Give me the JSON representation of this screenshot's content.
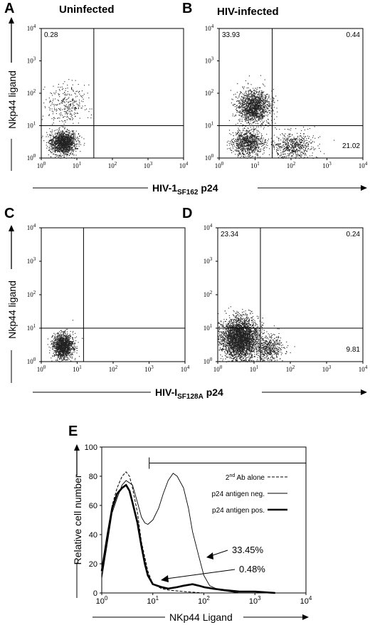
{
  "chart_data": [
    {
      "type": "scatter",
      "panel": "A",
      "title": "Uninfected",
      "ylabel": "Nkp44 ligand",
      "xlabel_main": "HIV-1",
      "xlabel_sub": "SF162",
      "xlabel_suffix": " p24",
      "x_ticks": [
        "10",
        "10",
        "10",
        "10",
        "10"
      ],
      "x_exps": [
        "0",
        "1",
        "2",
        "3",
        "4"
      ],
      "y_ticks": [
        "10",
        "10",
        "10",
        "10",
        "10"
      ],
      "y_exps": [
        "0",
        "1",
        "2",
        "3",
        "4"
      ],
      "xlim": [
        1,
        10000
      ],
      "ylim": [
        1,
        10000
      ],
      "xscale": "log",
      "yscale": "log",
      "gate_x": 30,
      "gate_y": 10,
      "quadrant_values": {
        "upper_left": "0.28",
        "upper_right": "",
        "lower_right": ""
      },
      "populations": [
        {
          "x_center": 4,
          "y_center": 3,
          "spread_x": 0.18,
          "spread_y": 0.18,
          "points": 1500
        },
        {
          "x_center": 5,
          "y_center": 45,
          "spread_x": 0.25,
          "spread_y": 0.3,
          "points": 300
        }
      ]
    },
    {
      "type": "scatter",
      "panel": "B",
      "title": "HIV-infected",
      "x_ticks": [
        "10",
        "10",
        "10",
        "10",
        "10"
      ],
      "x_exps": [
        "0",
        "1",
        "2",
        "3",
        "4"
      ],
      "y_ticks": [
        "10",
        "10",
        "10",
        "10",
        "10"
      ],
      "y_exps": [
        "0",
        "1",
        "2",
        "3",
        "4"
      ],
      "xlim": [
        1,
        10000
      ],
      "ylim": [
        1,
        10000
      ],
      "xscale": "log",
      "yscale": "log",
      "gate_x": 30,
      "gate_y": 10,
      "quadrant_values": {
        "upper_left": "33.93",
        "upper_right": "0.44",
        "lower_right": "21.02"
      },
      "populations": [
        {
          "x_center": 9,
          "y_center": 40,
          "spread_x": 0.22,
          "spread_y": 0.25,
          "points": 1500
        },
        {
          "x_center": 6,
          "y_center": 3,
          "spread_x": 0.22,
          "spread_y": 0.2,
          "points": 900
        },
        {
          "x_center": 110,
          "y_center": 2.5,
          "spread_x": 0.3,
          "spread_y": 0.2,
          "points": 600
        }
      ]
    },
    {
      "type": "scatter",
      "panel": "C",
      "ylabel": "Nkp44 ligand",
      "xlabel_main": "HIV-I",
      "xlabel_sub": "SF128A",
      "xlabel_suffix": " p24",
      "x_ticks": [
        "10",
        "10",
        "10",
        "10",
        "10"
      ],
      "x_exps": [
        "0",
        "1",
        "2",
        "3",
        "4"
      ],
      "y_ticks": [
        "10",
        "10",
        "10",
        "10",
        "10"
      ],
      "y_exps": [
        "0",
        "1",
        "2",
        "3",
        "4"
      ],
      "xlim": [
        1,
        10000
      ],
      "ylim": [
        1,
        10000
      ],
      "xscale": "log",
      "yscale": "log",
      "gate_x": 15,
      "gate_y": 10,
      "quadrant_values": {
        "upper_left": "",
        "upper_right": "",
        "lower_right": ""
      },
      "populations": [
        {
          "x_center": 4,
          "y_center": 3,
          "spread_x": 0.14,
          "spread_y": 0.18,
          "points": 1400
        }
      ]
    },
    {
      "type": "scatter",
      "panel": "D",
      "x_ticks": [
        "10",
        "10",
        "10",
        "10",
        "10"
      ],
      "x_exps": [
        "0",
        "1",
        "2",
        "3",
        "4"
      ],
      "y_ticks": [
        "10",
        "10",
        "10",
        "10",
        "10"
      ],
      "y_exps": [
        "0",
        "1",
        "2",
        "3",
        "4"
      ],
      "xlim": [
        1,
        10000
      ],
      "ylim": [
        1,
        10000
      ],
      "xscale": "log",
      "yscale": "log",
      "gate_x": 15,
      "gate_y": 10,
      "quadrant_values": {
        "upper_left": "23.34",
        "upper_right": "0.24",
        "lower_right": "9.81"
      },
      "populations": [
        {
          "x_center": 4,
          "y_center": 5,
          "spread_x": 0.25,
          "spread_y": 0.3,
          "points": 3500
        },
        {
          "x_center": 25,
          "y_center": 2.5,
          "spread_x": 0.2,
          "spread_y": 0.18,
          "points": 500
        }
      ]
    },
    {
      "type": "line",
      "panel": "E",
      "ylabel": "Relative cell number",
      "xlabel": "NKp44 Ligand",
      "xscale": "log",
      "xlim": [
        1,
        10000
      ],
      "ylim": [
        0,
        100
      ],
      "y_ticks": [
        "0",
        "20",
        "40",
        "60",
        "80",
        "100"
      ],
      "x_ticks": [
        "10",
        "10",
        "10",
        "10",
        "10"
      ],
      "x_exps": [
        "0",
        "1",
        "2",
        "3",
        "4"
      ],
      "gate_start": 8.5,
      "gate_y": 89,
      "legend": [
        {
          "label_main": "2",
          "label_sup": "nd",
          "label_rest": " Ab alone",
          "style": "dashed"
        },
        {
          "label_main": "p24 antigen neg.",
          "label_sup": "",
          "label_rest": "",
          "style": "thin"
        },
        {
          "label_main": "p24 antigen pos.",
          "label_sup": "",
          "label_rest": "",
          "style": "thick"
        }
      ],
      "annotations": [
        {
          "text": "33.45%"
        },
        {
          "text": "0.48%"
        }
      ],
      "series": [
        {
          "name": "2nd Ab alone",
          "style": "dashed",
          "x": [
            1,
            1.3,
            1.6,
            2,
            2.5,
            3,
            3.5,
            4,
            5,
            6,
            8,
            10,
            15,
            20,
            40,
            100,
            300
          ],
          "y": [
            12,
            40,
            60,
            72,
            80,
            83,
            80,
            72,
            55,
            35,
            15,
            6,
            3,
            2,
            1,
            0,
            0
          ]
        },
        {
          "name": "p24 antigen neg.",
          "style": "thin",
          "x": [
            1,
            1.3,
            1.6,
            2,
            2.5,
            3,
            4,
            5,
            6,
            7,
            8,
            10,
            13,
            16,
            20,
            25,
            30,
            40,
            50,
            60,
            80,
            100,
            130,
            200,
            500
          ],
          "y": [
            10,
            35,
            55,
            65,
            74,
            77,
            74,
            62,
            52,
            48,
            47,
            50,
            58,
            68,
            77,
            82,
            80,
            72,
            58,
            42,
            25,
            12,
            5,
            2,
            0
          ]
        },
        {
          "name": "p24 antigen pos.",
          "style": "thick",
          "x": [
            1,
            1.3,
            1.6,
            2,
            2.5,
            3,
            3.5,
            4,
            5,
            6,
            7,
            8,
            10,
            15,
            20,
            30,
            40,
            60,
            80,
            100,
            150,
            250,
            500,
            1000,
            2500
          ],
          "y": [
            15,
            40,
            58,
            68,
            72,
            74,
            70,
            62,
            48,
            32,
            20,
            12,
            6,
            4,
            3,
            4,
            5,
            6,
            5,
            4,
            3,
            2,
            1,
            1,
            0
          ]
        }
      ]
    }
  ]
}
